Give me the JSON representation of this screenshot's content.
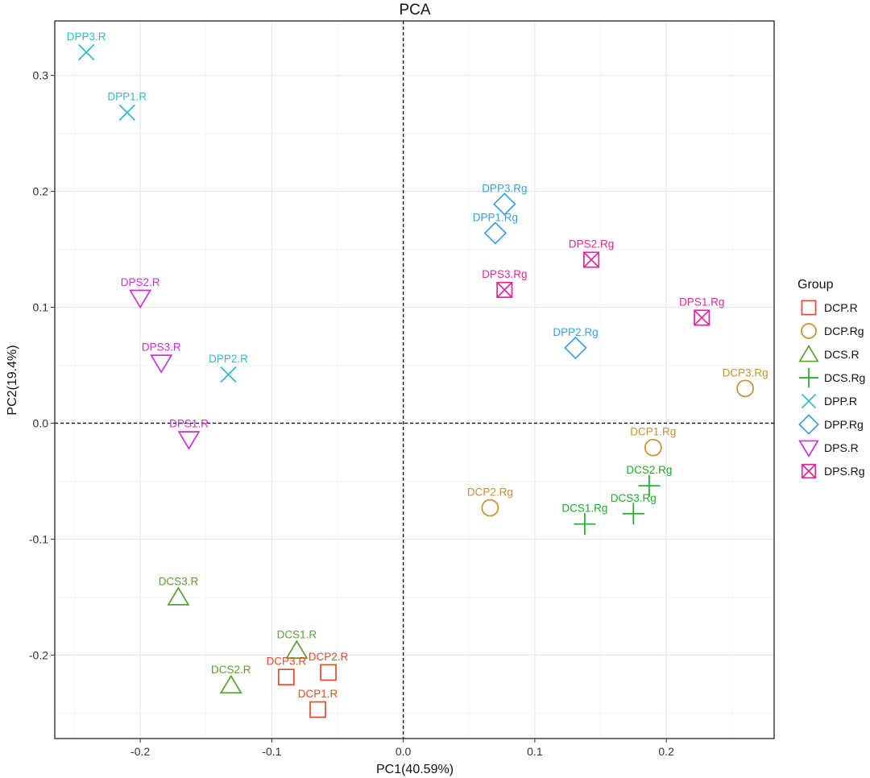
{
  "chart_data": {
    "type": "scatter",
    "title": "PCA",
    "xlabel": "PC1(40.59%)",
    "ylabel": "PC2(19.4%)",
    "xlim": [
      -0.265,
      0.282
    ],
    "ylim": [
      -0.272,
      0.347
    ],
    "xticks": [
      -0.2,
      -0.1,
      0.0,
      0.1,
      0.2
    ],
    "xtick_labels": [
      "-0.2",
      "-0.1",
      "0.0",
      "0.1",
      "0.2"
    ],
    "yticks": [
      -0.2,
      -0.1,
      0.0,
      0.1,
      0.2,
      0.3
    ],
    "ytick_labels": [
      "-0.2",
      "-0.1",
      "0.0",
      "0.1",
      "0.2",
      "0.3"
    ],
    "grid": true,
    "reference_lines": {
      "x": 0,
      "y": 0,
      "style": "dashed"
    },
    "legend": {
      "title": "Group",
      "position": "right",
      "entries": [
        "DCP.R",
        "DCP.Rg",
        "DCS.R",
        "DCS.Rg",
        "DPP.R",
        "DPP.Rg",
        "DPS.R",
        "DPS.Rg"
      ]
    },
    "groups": [
      {
        "name": "DCP.R",
        "color": "#e8472b",
        "shape": "square",
        "points": [
          {
            "label": "DCP1.R",
            "x": -0.065,
            "y": -0.247
          },
          {
            "label": "DCP2.R",
            "x": -0.057,
            "y": -0.215
          },
          {
            "label": "DCP3.R",
            "x": -0.089,
            "y": -0.219
          }
        ]
      },
      {
        "name": "DCP.Rg",
        "color": "#c8902f",
        "shape": "circle",
        "points": [
          {
            "label": "DCP1.Rg",
            "x": 0.19,
            "y": -0.021
          },
          {
            "label": "DCP2.Rg",
            "x": 0.066,
            "y": -0.073
          },
          {
            "label": "DCP3.Rg",
            "x": 0.26,
            "y": 0.03
          }
        ]
      },
      {
        "name": "DCS.R",
        "color": "#5aa02c",
        "shape": "triangle",
        "points": [
          {
            "label": "DCS1.R",
            "x": -0.081,
            "y": -0.196
          },
          {
            "label": "DCS2.R",
            "x": -0.131,
            "y": -0.226
          },
          {
            "label": "DCS3.R",
            "x": -0.171,
            "y": -0.15
          }
        ]
      },
      {
        "name": "DCS.Rg",
        "color": "#1faa27",
        "shape": "plus",
        "points": [
          {
            "label": "DCS1.Rg",
            "x": 0.138,
            "y": -0.087
          },
          {
            "label": "DCS2.Rg",
            "x": 0.187,
            "y": -0.054
          },
          {
            "label": "DCS3.Rg",
            "x": 0.175,
            "y": -0.078
          }
        ]
      },
      {
        "name": "DPP.R",
        "color": "#2dbcc6",
        "shape": "cross",
        "points": [
          {
            "label": "DPP1.R",
            "x": -0.21,
            "y": 0.268
          },
          {
            "label": "DPP2.R",
            "x": -0.133,
            "y": 0.042
          },
          {
            "label": "DPP3.R",
            "x": -0.241,
            "y": 0.32
          }
        ]
      },
      {
        "name": "DPP.Rg",
        "color": "#3a9fdf",
        "shape": "diamond",
        "points": [
          {
            "label": "DPP1.Rg",
            "x": 0.07,
            "y": 0.164
          },
          {
            "label": "DPP2.Rg",
            "x": 0.131,
            "y": 0.065
          },
          {
            "label": "DPP3.Rg",
            "x": 0.077,
            "y": 0.189
          }
        ]
      },
      {
        "name": "DPS.R",
        "color": "#c832d8",
        "shape": "triangle-down",
        "points": [
          {
            "label": "DPS1.R",
            "x": -0.163,
            "y": -0.014
          },
          {
            "label": "DPS2.R",
            "x": -0.2,
            "y": 0.108
          },
          {
            "label": "DPS3.R",
            "x": -0.184,
            "y": 0.052
          }
        ]
      },
      {
        "name": "DPS.Rg",
        "color": "#e2269c",
        "shape": "square-cross",
        "points": [
          {
            "label": "DPS1.Rg",
            "x": 0.227,
            "y": 0.091
          },
          {
            "label": "DPS2.Rg",
            "x": 0.143,
            "y": 0.141
          },
          {
            "label": "DPS3.Rg",
            "x": 0.077,
            "y": 0.115
          }
        ]
      }
    ]
  }
}
